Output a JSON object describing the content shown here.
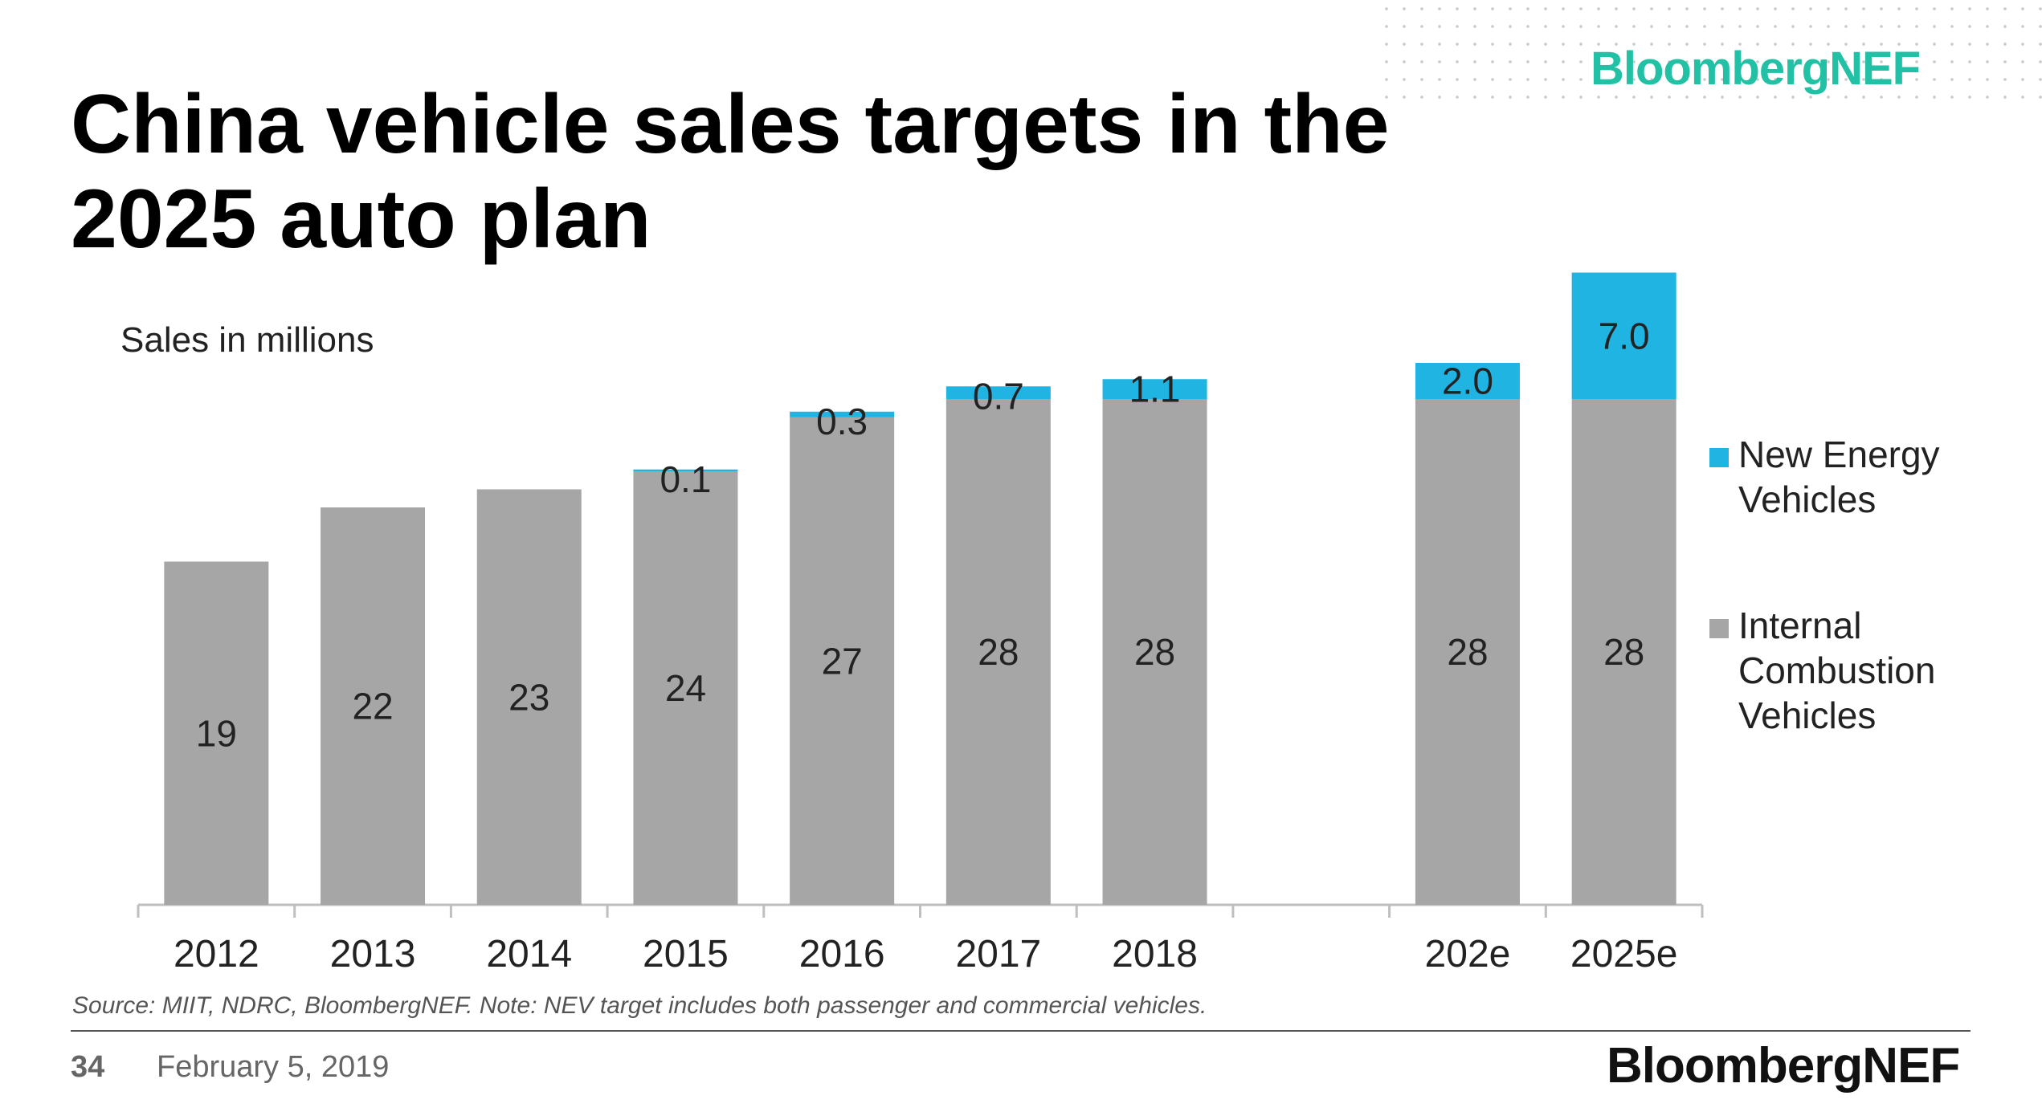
{
  "header": {
    "title": "China vehicle sales targets in the 2025 auto plan",
    "brand": "BloombergNEF"
  },
  "chart_data": {
    "type": "bar",
    "stacked": true,
    "ylabel": "Sales in millions",
    "categories": [
      "2012",
      "2013",
      "2014",
      "2015",
      "2016",
      "2017",
      "2018",
      "",
      "202e",
      "2025e"
    ],
    "series": [
      {
        "name": "Internal Combustion Vehicles",
        "color": "#a6a6a6",
        "values": [
          19,
          22,
          23,
          24,
          27,
          28,
          28,
          null,
          28,
          28
        ],
        "labels": [
          "19",
          "22",
          "23",
          "24",
          "27",
          "28",
          "28",
          "",
          "28",
          "28"
        ]
      },
      {
        "name": "New Energy Vehicles",
        "color": "#1fb4e2",
        "values": [
          0,
          0,
          0,
          0.1,
          0.3,
          0.7,
          1.1,
          null,
          2.0,
          7.0
        ],
        "labels": [
          "",
          "",
          "",
          "0.1",
          "0.3",
          "0.7",
          "1.1",
          "",
          "2.0",
          "7.0"
        ]
      }
    ],
    "legend": {
      "position": "right",
      "items": [
        {
          "label_lines": [
            "New Energy",
            "Vehicles"
          ],
          "color": "#1fb4e2"
        },
        {
          "label_lines": [
            "Internal",
            "Combustion",
            "Vehicles"
          ],
          "color": "#a6a6a6"
        }
      ]
    },
    "grid": false
  },
  "footer": {
    "source": "Source: MIIT, NDRC, BloombergNEF. Note: NEV target includes both passenger and commercial vehicles.",
    "page": "34",
    "date": "February 5, 2019",
    "brand": "BloombergNEF"
  }
}
